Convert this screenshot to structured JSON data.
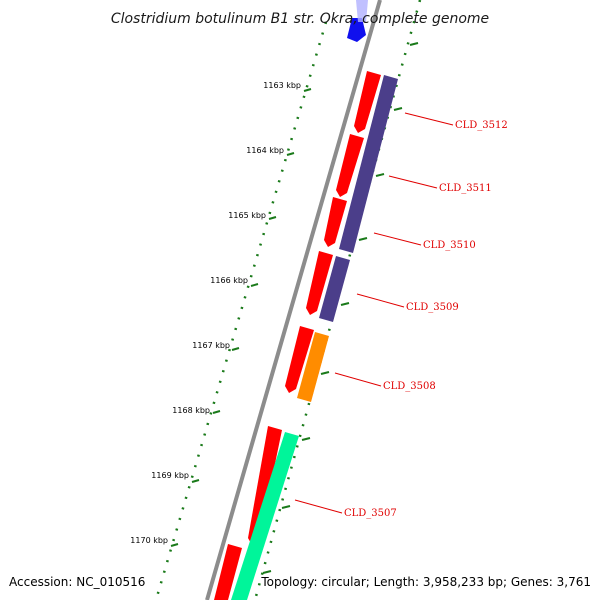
{
  "title": "Clostridium botulinum B1 str. Okra, complete genome",
  "footer": {
    "accession": "Accession: NC_010516",
    "summary": "Topology: circular; Length: 3,958,233 bp; Genes: 3,761"
  },
  "ruler_labels": [
    "1163 kbp",
    "1164 kbp",
    "1165 kbp",
    "1166 kbp",
    "1167 kbp",
    "1168 kbp",
    "1169 kbp",
    "1170 kbp"
  ],
  "gene_labels": [
    "CLD_3512",
    "CLD_3511",
    "CLD_3510",
    "CLD_3509",
    "CLD_3508",
    "CLD_3507"
  ],
  "colors": {
    "backbone": "#8c8c8c",
    "cds": "#ff0000",
    "gene_3512": "#4b3e8a",
    "gene_3508": "#ff8c00",
    "gene_3507": "#00f59a",
    "top_feature": "#1010ee",
    "ticks": "#1a7a1a",
    "label_line": "#e00000"
  }
}
